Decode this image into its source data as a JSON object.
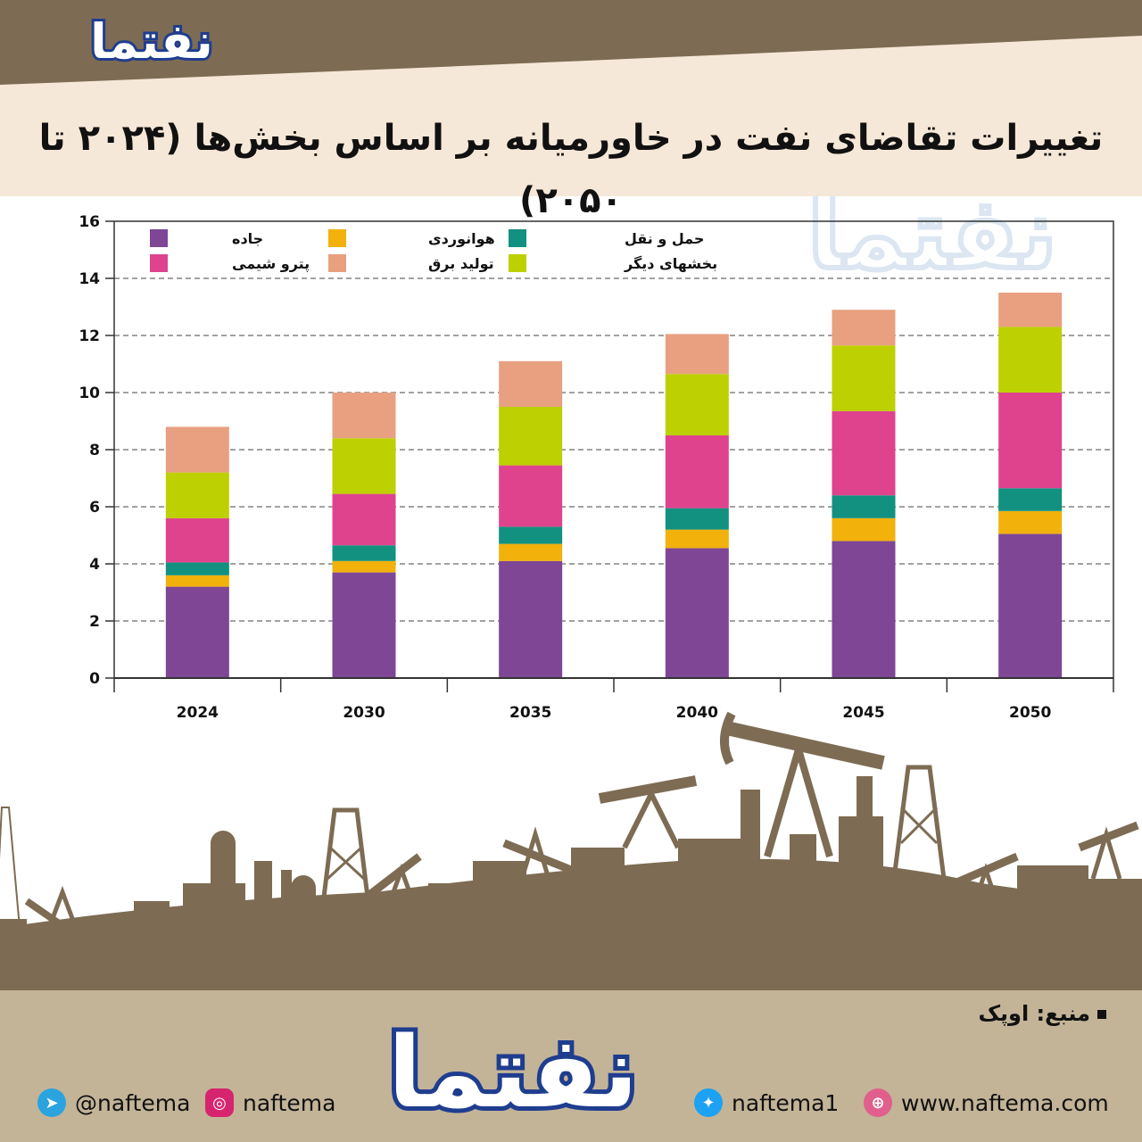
{
  "header": {
    "title": "تغییرات تقاضای نفت در خاورمیانه بر اساس بخش‌ها (۲۰۲۴ تا ۲۰۵۰)",
    "logo_text": "نفتما"
  },
  "chart_data": {
    "type": "bar",
    "stacked": true,
    "title": "تغییرات تقاضای نفت در خاورمیانه بر اساس بخش‌ها (۲۰۲۴ تا ۲۰۵۰)",
    "categories": [
      "2024",
      "2030",
      "2035",
      "2040",
      "2045",
      "2050"
    ],
    "series": [
      {
        "name": "جاده",
        "color": "#7e4695",
        "values": [
          3.2,
          3.7,
          4.1,
          4.55,
          4.8,
          5.05
        ]
      },
      {
        "name": "هوانوردی",
        "color": "#f2b10b",
        "values": [
          0.4,
          0.4,
          0.6,
          0.65,
          0.8,
          0.8
        ]
      },
      {
        "name": "حمل و نقل",
        "color": "#129180",
        "values": [
          0.45,
          0.55,
          0.6,
          0.75,
          0.8,
          0.8
        ]
      },
      {
        "name": "پترو شیمی",
        "color": "#e0438e",
        "values": [
          1.55,
          1.8,
          2.15,
          2.55,
          2.95,
          3.35
        ]
      },
      {
        "name": "بخشهای دیگر",
        "color": "#bdd001",
        "values": [
          1.6,
          1.95,
          2.05,
          2.15,
          2.3,
          2.3
        ]
      },
      {
        "name": "تولید برق",
        "color": "#e8a081",
        "values": [
          1.6,
          1.6,
          1.6,
          1.4,
          1.25,
          1.2
        ]
      }
    ],
    "ylim": [
      0,
      16
    ],
    "yticks": [
      0,
      2,
      4,
      6,
      8,
      10,
      12,
      14,
      16
    ],
    "grid": true,
    "legend": "top-left"
  },
  "footer": {
    "source": "منبع: اوپک",
    "telegram": "@naftema",
    "instagram": "naftema",
    "twitter": "naftema1",
    "website": "www.naftema.com",
    "logo_text": "نفتما"
  },
  "colors": {
    "header_band": "#7d6c53",
    "header_bg": "#f6e8d8",
    "footer_bg": "#c3b498",
    "silhouette": "#7d6c53",
    "logo_blue": "#1f3d8f"
  }
}
